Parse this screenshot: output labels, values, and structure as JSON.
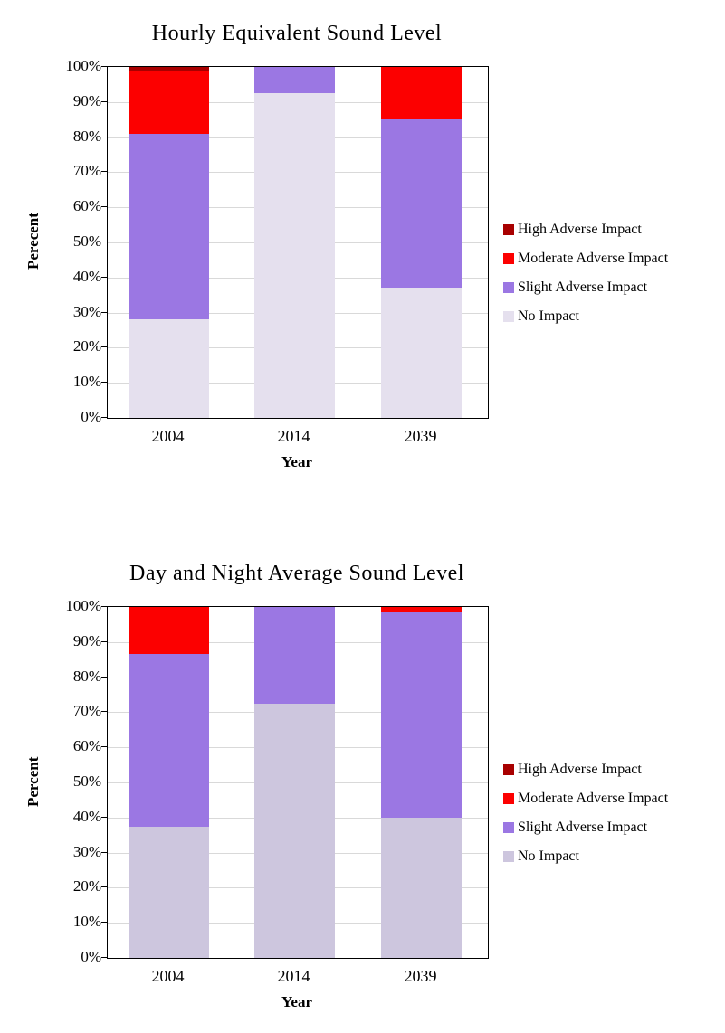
{
  "page": {
    "background": "#ffffff"
  },
  "chart_data": [
    {
      "type": "bar",
      "stacked": true,
      "title": "Hourly Equivalent Sound Level",
      "xlabel": "Year",
      "ylabel": "Perecent",
      "categories": [
        "2004",
        "2014",
        "2039"
      ],
      "series": [
        {
          "name": "High Adverse Impact",
          "color": "#A80000",
          "values": [
            1,
            0,
            0
          ]
        },
        {
          "name": "Moderate Adverse Impact",
          "color": "#FC0000",
          "values": [
            18,
            0,
            15
          ]
        },
        {
          "name": "Slight Adverse Impact",
          "color": "#9B77E3",
          "values": [
            53,
            7.5,
            48
          ]
        },
        {
          "name": "No Impact",
          "color": "#E5E0EE",
          "values": [
            28,
            92.5,
            37
          ]
        }
      ],
      "ylim": [
        0,
        100
      ],
      "ytick_labels": [
        "100%",
        "90%",
        "80%",
        "70%",
        "60%",
        "50%",
        "40%",
        "30%",
        "20%",
        "10%",
        "0%"
      ],
      "grid": true,
      "legend_position": "right"
    },
    {
      "type": "bar",
      "stacked": true,
      "title": "Day and Night Average Sound Level",
      "xlabel": "Year",
      "ylabel": "Percent",
      "categories": [
        "2004",
        "2014",
        "2039"
      ],
      "series": [
        {
          "name": "High Adverse Impact",
          "color": "#A80000",
          "values": [
            0,
            0,
            0
          ]
        },
        {
          "name": "Moderate Adverse Impact",
          "color": "#FC0000",
          "values": [
            13.5,
            0,
            1.5
          ]
        },
        {
          "name": "Slight Adverse Impact",
          "color": "#9B77E3",
          "values": [
            49,
            27.5,
            58.5
          ]
        },
        {
          "name": "No Impact",
          "color": "#CDC6DE",
          "values": [
            37.5,
            72.5,
            40
          ]
        }
      ],
      "ylim": [
        0,
        100
      ],
      "ytick_labels": [
        "100%",
        "90%",
        "80%",
        "70%",
        "60%",
        "50%",
        "40%",
        "30%",
        "20%",
        "10%",
        "0%"
      ],
      "grid": true,
      "legend_position": "right"
    }
  ]
}
